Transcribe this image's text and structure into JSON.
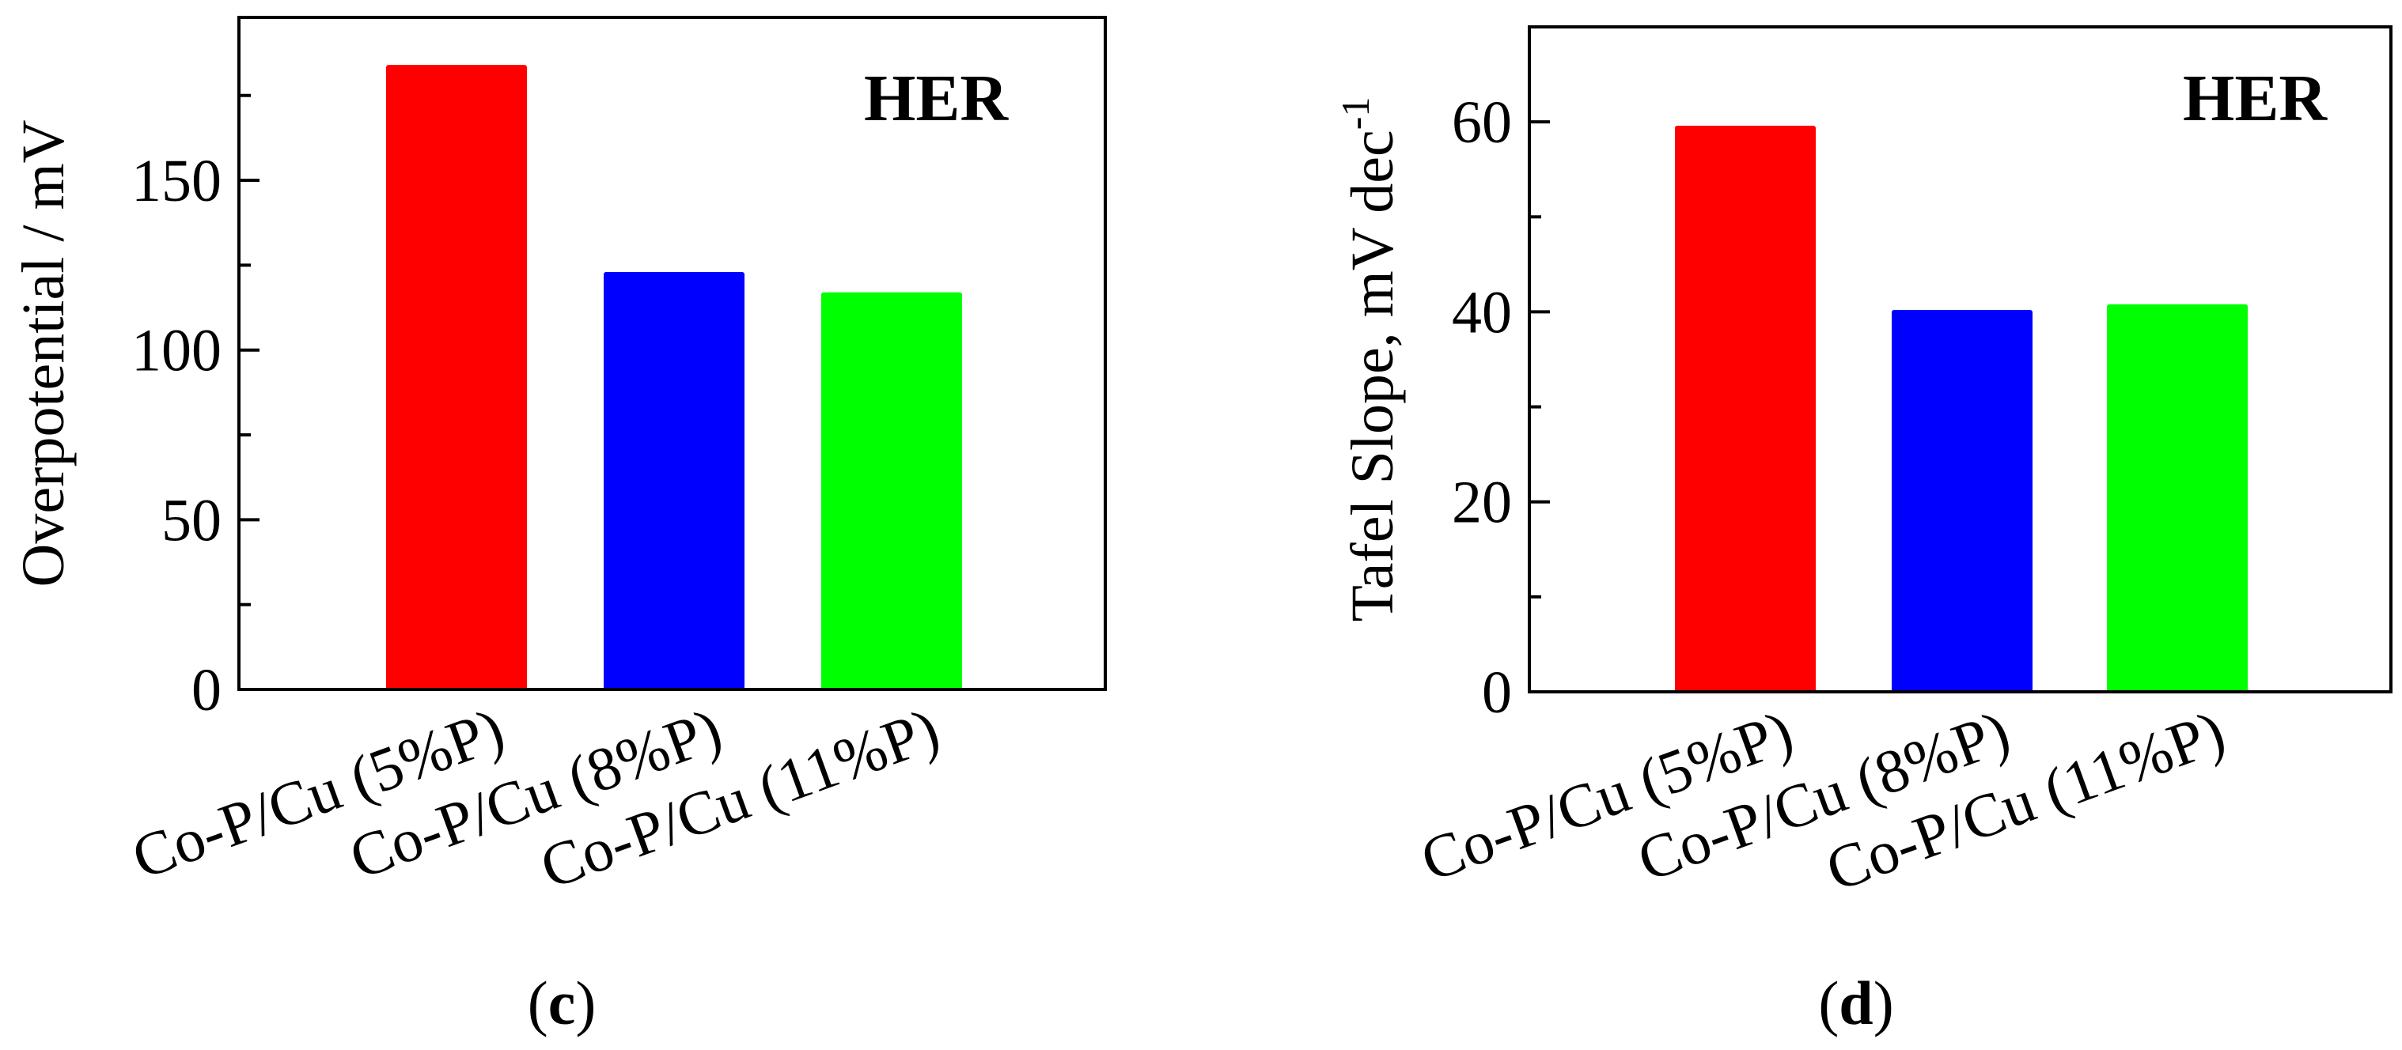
{
  "chart_data": [
    {
      "type": "bar",
      "panel_label": "c",
      "annotation": "HER",
      "categories": [
        "Co-P/Cu (5%P)",
        "Co-P/Cu (8%P)",
        "Co-P/Cu (11%P)"
      ],
      "values": [
        184,
        123,
        117
      ],
      "colors": [
        "#ff0000",
        "#0000ff",
        "#00ff00"
      ],
      "ylabel": "Overpotential / mV",
      "ylim": [
        0,
        198
      ],
      "yticks": [
        0,
        50,
        100,
        150
      ],
      "yticks_minor": [
        25,
        75,
        125,
        175
      ],
      "grid": false,
      "legend": "none"
    },
    {
      "type": "bar",
      "panel_label": "d",
      "annotation": "HER",
      "categories": [
        "Co-P/Cu (5%P)",
        "Co-P/Cu (8%P)",
        "Co-P/Cu (11%P)"
      ],
      "values": [
        59.6,
        40.2,
        40.8
      ],
      "colors": [
        "#ff0000",
        "#0000ff",
        "#00ff00"
      ],
      "ylabel": "Tafel Slope, mV dec",
      "ylabel_superscript": "-1",
      "ylim": [
        0,
        70
      ],
      "yticks": [
        0,
        20,
        40,
        60
      ],
      "yticks_minor": [
        10,
        30,
        50
      ],
      "grid": false,
      "legend": "none"
    }
  ]
}
